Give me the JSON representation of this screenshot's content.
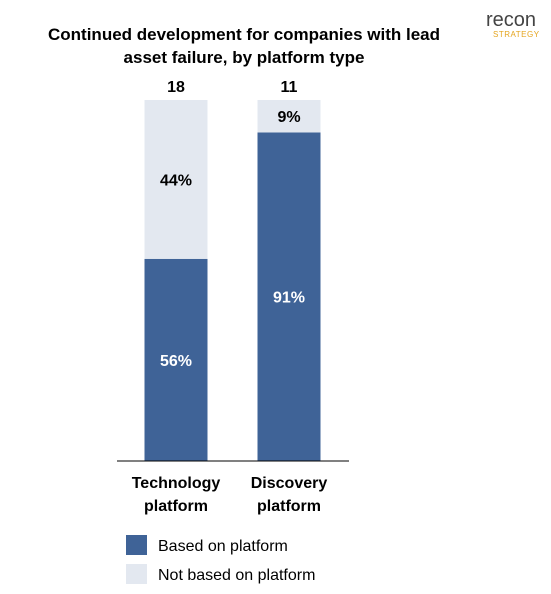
{
  "logo": {
    "text_recon": "recon",
    "text_strategy": "STRATEGY"
  },
  "chart_data": {
    "type": "bar",
    "stacked": "percent",
    "title": "Continued development for companies with lead asset failure, by platform type",
    "title_lines": [
      "Continued development for companies with lead",
      "asset failure, by platform type"
    ],
    "categories": [
      "Technology\nplatform",
      "Discovery\nplatform"
    ],
    "category_lines": [
      [
        "Technology",
        "platform"
      ],
      [
        "Discovery",
        "platform"
      ]
    ],
    "totals": [
      18,
      11
    ],
    "ylim": [
      0,
      100
    ],
    "grid": false,
    "legend_position": "bottom-center",
    "series": [
      {
        "name": "Based on platform",
        "values": [
          56,
          91
        ],
        "labels": [
          "56%",
          "91%"
        ],
        "color": "#3f6397",
        "label_color": "#ffffff"
      },
      {
        "name": "Not based on platform",
        "values": [
          44,
          9
        ],
        "labels": [
          "44%",
          "9%"
        ],
        "color": "#e3e8f0",
        "label_color": "#000000"
      }
    ]
  }
}
